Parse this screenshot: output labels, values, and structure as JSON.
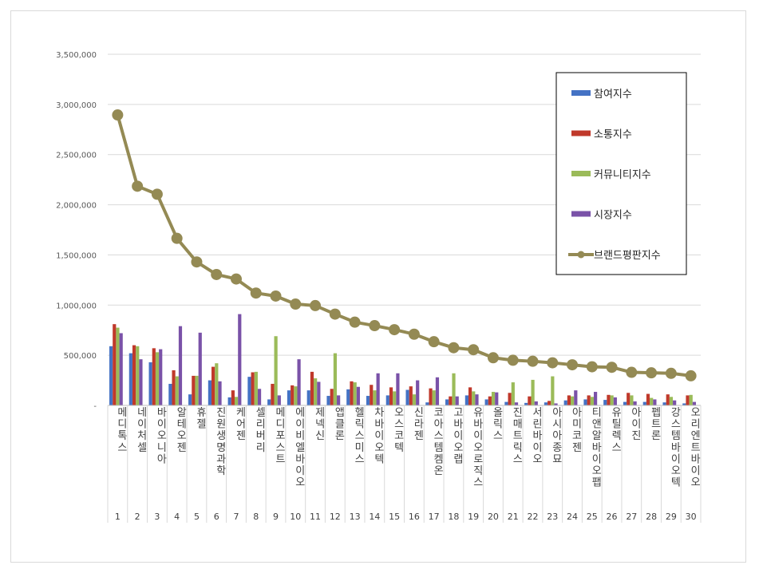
{
  "chart_data": {
    "type": "bar",
    "title": "",
    "xlabel": "",
    "ylabel": "",
    "ylim": [
      0,
      3500000
    ],
    "yticks": [
      0,
      500000,
      1000000,
      1500000,
      2000000,
      2500000,
      3000000,
      3500000
    ],
    "ytick_labels": [
      "-",
      "500,000",
      "1,000,000",
      "1,500,000",
      "2,000,000",
      "2,500,000",
      "3,000,000",
      "3,500,000"
    ],
    "grid": true,
    "legend_position": "right",
    "ranks": [
      "1",
      "2",
      "3",
      "4",
      "5",
      "6",
      "7",
      "8",
      "9",
      "10",
      "11",
      "12",
      "13",
      "14",
      "15",
      "16",
      "17",
      "18",
      "19",
      "20",
      "21",
      "22",
      "23",
      "24",
      "25",
      "26",
      "27",
      "28",
      "29",
      "30"
    ],
    "categories": [
      "메디톡스",
      "네이처셀",
      "바이오니아",
      "알테오젠",
      "휴젤",
      "진원생명과학",
      "케어젠",
      "셀리버리",
      "메디포스트",
      "에이비엘바이오",
      "제넥신",
      "앱클론",
      "헬릭스미스",
      "차바이오텍",
      "오스코텍",
      "신라젠",
      "코아스템켐온",
      "고바이오랩",
      "유바이오로직스",
      "올릭스",
      "진매트릭스",
      "서린바이오",
      "아시아종묘",
      "아미코젠",
      "티앤알바이오팹",
      "유틸렉스",
      "아이진",
      "펩트론",
      "강스템바이오텍",
      "오리엔트바이오"
    ],
    "series": [
      {
        "name": "참여지수",
        "type": "bar",
        "color": "#4472c4",
        "values": [
          590000,
          520000,
          430000,
          215000,
          110000,
          250000,
          80000,
          285000,
          60000,
          150000,
          150000,
          95000,
          160000,
          95000,
          100000,
          155000,
          30000,
          60000,
          100000,
          60000,
          35000,
          25000,
          30000,
          50000,
          60000,
          55000,
          35000,
          35000,
          30000,
          20000
        ]
      },
      {
        "name": "소통지수",
        "type": "bar",
        "color": "#c0392b",
        "values": [
          810000,
          600000,
          570000,
          350000,
          295000,
          385000,
          150000,
          330000,
          215000,
          200000,
          335000,
          165000,
          240000,
          205000,
          180000,
          190000,
          170000,
          90000,
          180000,
          90000,
          125000,
          90000,
          45000,
          100000,
          100000,
          105000,
          125000,
          115000,
          110000,
          100000
        ]
      },
      {
        "name": "커뮤니티지수",
        "type": "bar",
        "color": "#9bbb59",
        "values": [
          775000,
          590000,
          530000,
          290000,
          295000,
          420000,
          85000,
          335000,
          690000,
          190000,
          270000,
          520000,
          230000,
          150000,
          140000,
          110000,
          150000,
          320000,
          140000,
          135000,
          230000,
          255000,
          290000,
          90000,
          85000,
          100000,
          100000,
          75000,
          85000,
          105000
        ]
      },
      {
        "name": "시장지수",
        "type": "bar",
        "color": "#7a52a8",
        "values": [
          720000,
          460000,
          560000,
          790000,
          725000,
          240000,
          910000,
          165000,
          100000,
          460000,
          235000,
          100000,
          185000,
          320000,
          320000,
          250000,
          280000,
          90000,
          110000,
          130000,
          30000,
          40000,
          20000,
          150000,
          135000,
          80000,
          40000,
          60000,
          50000,
          35000
        ]
      },
      {
        "name": "브랜드평판지수",
        "type": "line",
        "color": "#948a54",
        "values": [
          2895000,
          2185000,
          2105000,
          1665000,
          1430000,
          1305000,
          1260000,
          1120000,
          1090000,
          1010000,
          995000,
          910000,
          830000,
          795000,
          755000,
          710000,
          635000,
          575000,
          555000,
          475000,
          450000,
          440000,
          425000,
          405000,
          385000,
          380000,
          330000,
          325000,
          320000,
          295000
        ]
      }
    ]
  }
}
